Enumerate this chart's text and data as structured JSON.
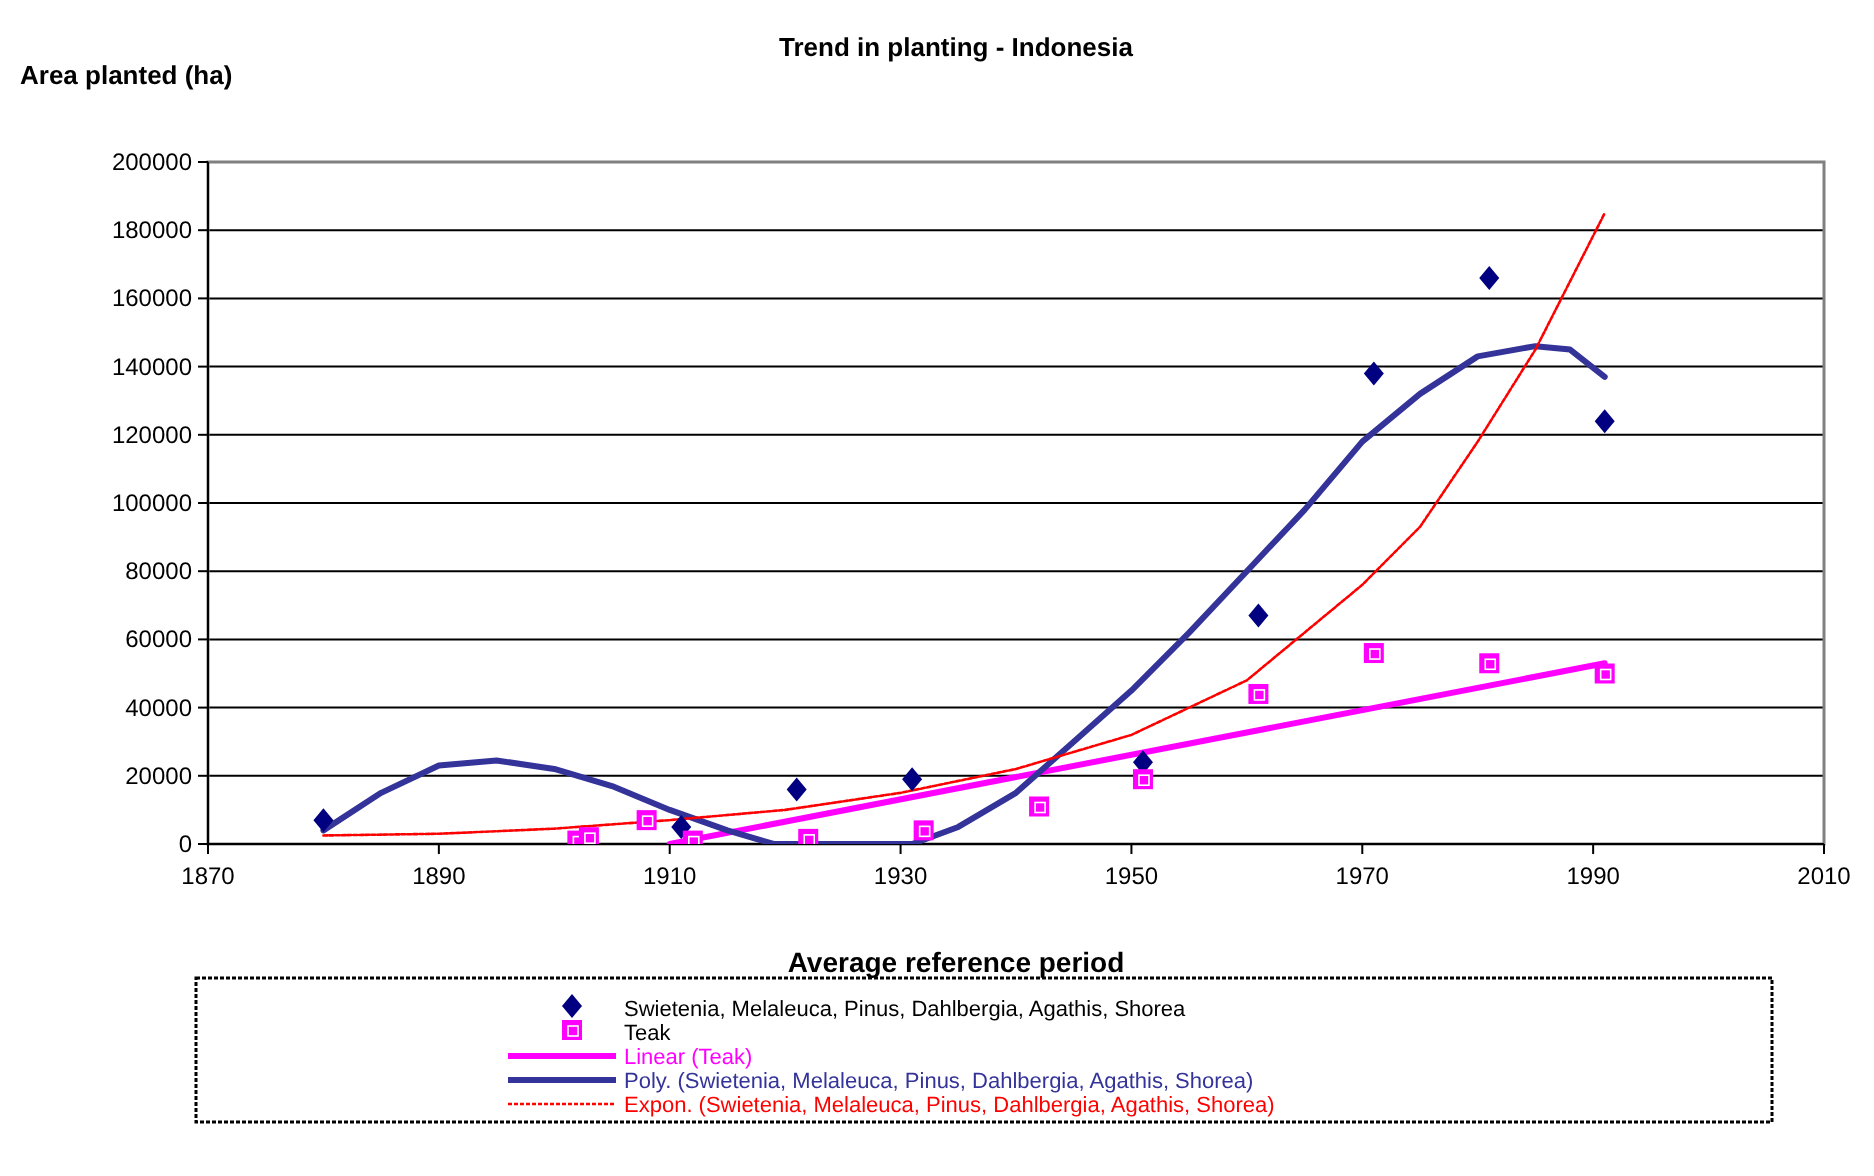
{
  "chart_data": {
    "type": "scatter",
    "title": "Trend in planting - Indonesia",
    "xlabel": "Average reference period",
    "ylabel": "Area planted (ha)",
    "xlim": [
      1870,
      2010
    ],
    "xticks": [
      1870,
      1890,
      1910,
      1930,
      1950,
      1970,
      1990,
      2010
    ],
    "ylim": [
      0,
      200000
    ],
    "yticks": [
      0,
      20000,
      40000,
      60000,
      80000,
      100000,
      120000,
      140000,
      160000,
      180000,
      200000
    ],
    "grid": "y",
    "legend": "bottom",
    "series": [
      {
        "name": "Swietenia, Melaleuca, Pinus, Dahlbergia, Agathis, Shorea",
        "marker": "diamond",
        "color": "#000080",
        "x": [
          1880,
          1911,
          1921,
          1931,
          1951,
          1961,
          1971,
          1981,
          1991
        ],
        "values": [
          7000,
          5000,
          16000,
          19000,
          24000,
          67000,
          138000,
          166000,
          124000
        ]
      },
      {
        "name": "Teak",
        "marker": "square",
        "color": "#ff00ff",
        "x": [
          1902,
          1903,
          1908,
          1912,
          1922,
          1932,
          1942,
          1951,
          1961,
          1971,
          1981,
          1991
        ],
        "values": [
          1000,
          2000,
          7000,
          1000,
          1500,
          4000,
          11000,
          19000,
          44000,
          56000,
          53000,
          50000
        ]
      },
      {
        "name": "Linear (Teak)",
        "type": "line",
        "marker": "none",
        "line_style": "solid",
        "color": "#ff00ff",
        "x": [
          1910,
          1991
        ],
        "values": [
          0,
          53000
        ]
      },
      {
        "name": "Poly. (Swietenia, Melaleuca, Pinus, Dahlbergia, Agathis, Shorea)",
        "type": "line",
        "marker": "none",
        "line_style": "solid",
        "color": "#333399",
        "x": [
          1880,
          1885,
          1890,
          1895,
          1900,
          1905,
          1910,
          1915,
          1919,
          1925,
          1931,
          1935,
          1940,
          1945,
          1950,
          1955,
          1960,
          1965,
          1970,
          1975,
          1980,
          1985,
          1988,
          1991
        ],
        "values": [
          4000,
          15000,
          23000,
          24500,
          22000,
          17000,
          10000,
          4000,
          0,
          0,
          0,
          5000,
          15000,
          30000,
          45000,
          62000,
          80000,
          98000,
          118000,
          132000,
          143000,
          146000,
          145000,
          137000
        ]
      },
      {
        "name": "Expon. (Swietenia, Melaleuca, Pinus, Dahlbergia, Agathis, Shorea)",
        "type": "line",
        "marker": "none",
        "line_style": "dotted",
        "color": "#ff0000",
        "x": [
          1880,
          1890,
          1900,
          1910,
          1920,
          1930,
          1940,
          1950,
          1960,
          1970,
          1975,
          1980,
          1985,
          1991
        ],
        "values": [
          2500,
          3000,
          4500,
          7000,
          10000,
          15000,
          22000,
          32000,
          48000,
          76000,
          93000,
          118000,
          145000,
          185000
        ]
      }
    ]
  }
}
